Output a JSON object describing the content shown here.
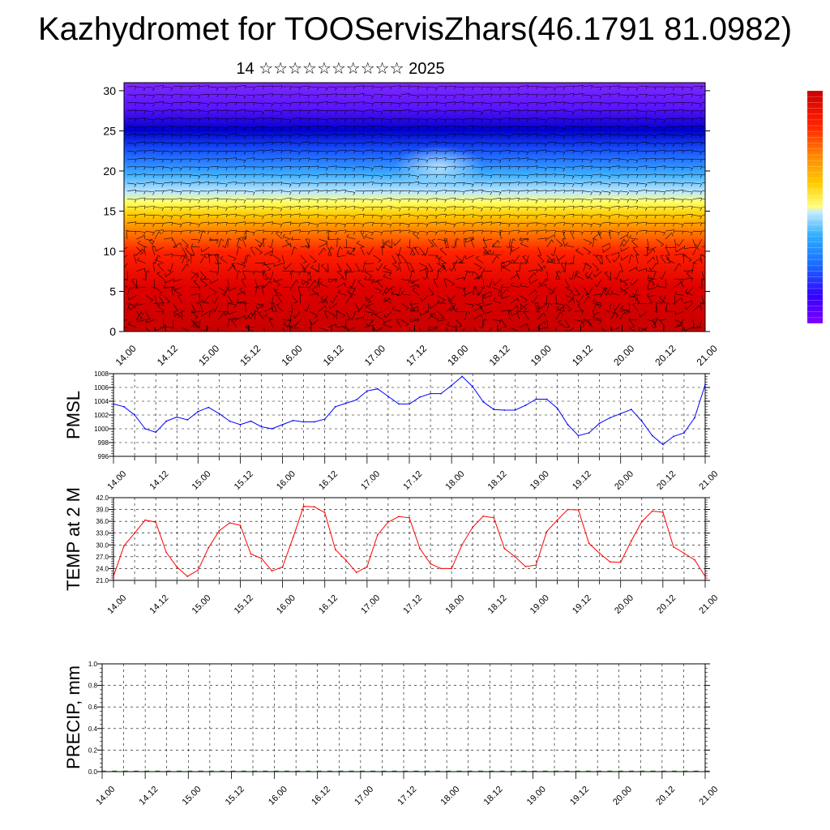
{
  "title": "Kazhydromet for TOOServisZhars(46.1791 81.0982)",
  "subtitle": "14 ☆☆☆☆☆☆☆☆☆☆ 2025",
  "x_labels": [
    "14.00",
    "14.12",
    "15.00",
    "15.12",
    "16.00",
    "16.12",
    "17.00",
    "17.12",
    "18.00",
    "18.12",
    "19.00",
    "19.12",
    "20.00",
    "20.12",
    "21.00"
  ],
  "chart_data": [
    {
      "type": "heatmap",
      "name": "profile",
      "x": [
        "14.00",
        "14.12",
        "15.00",
        "15.12",
        "16.00",
        "16.12",
        "17.00",
        "17.12",
        "18.00",
        "18.12",
        "19.00",
        "19.12",
        "20.00",
        "20.12",
        "21.00"
      ],
      "ylim": [
        0,
        31
      ],
      "yticks": [
        0,
        5,
        10,
        15,
        20,
        25,
        30
      ],
      "colorbar": [
        "#7f00ff",
        "#3300ff",
        "#0000dd",
        "#1a6aff",
        "#2fb0ff",
        "#a6e2ff",
        "#ffff66",
        "#ffcc00",
        "#ff9900",
        "#ff5500",
        "#ff0000",
        "#cc0000"
      ],
      "overlay": "wind barbs"
    },
    {
      "type": "line",
      "ylabel": "PMSL",
      "ylim": [
        996,
        1008
      ],
      "yticks": [
        996,
        998,
        1000,
        1002,
        1004,
        1006,
        1008
      ],
      "ytick_labels": [
        "996",
        "998",
        "1000",
        "1002",
        "1004",
        "1006",
        "1008"
      ],
      "color": "#0000ff",
      "x": [
        0,
        3,
        6,
        9,
        12,
        15,
        18,
        21,
        24,
        27,
        30,
        33,
        36,
        39,
        42,
        45,
        48,
        51,
        54,
        57,
        60,
        63,
        66,
        69,
        72,
        75,
        78,
        81,
        84,
        87,
        90,
        93,
        96,
        99,
        102,
        105,
        108,
        111,
        114,
        117,
        120,
        123,
        126,
        129,
        132,
        135,
        138,
        141,
        144,
        147,
        150,
        153,
        156,
        159,
        162,
        165,
        168
      ],
      "x_ticks": [
        0,
        12,
        24,
        36,
        48,
        60,
        72,
        84,
        96,
        108,
        120,
        132,
        144,
        156,
        168
      ],
      "values": [
        1003.6,
        1003.2,
        1002.0,
        1000.0,
        999.5,
        1001.1,
        1001.7,
        1001.3,
        1002.5,
        1003.1,
        1002.2,
        1001.1,
        1000.6,
        1001.1,
        1000.3,
        1000.0,
        1000.6,
        1001.2,
        1001.0,
        1001.0,
        1001.4,
        1003.2,
        1003.7,
        1004.2,
        1005.5,
        1005.8,
        1004.7,
        1003.6,
        1003.6,
        1004.6,
        1005.1,
        1005.1,
        1006.3,
        1007.6,
        1006.1,
        1003.9,
        1002.8,
        1002.7,
        1002.7,
        1003.4,
        1004.3,
        1004.3,
        1003.0,
        1000.6,
        999.0,
        999.4,
        1000.8,
        1001.6,
        1002.2,
        1002.8,
        1001.1,
        999.0,
        997.7,
        998.9,
        999.4,
        1001.6,
        1006.4
      ]
    },
    {
      "type": "line",
      "ylabel": "TEMP at 2 M",
      "ylim": [
        21,
        42
      ],
      "yticks": [
        21,
        24,
        27,
        30,
        33,
        36,
        39,
        42
      ],
      "ytick_labels": [
        "21.0",
        "24.0",
        "27.0",
        "30.0",
        "33.0",
        "36.0",
        "39.0",
        "42.0"
      ],
      "color": "#ff0000",
      "x": [
        0,
        3,
        6,
        9,
        12,
        15,
        18,
        21,
        24,
        27,
        30,
        33,
        36,
        39,
        42,
        45,
        48,
        51,
        54,
        57,
        60,
        63,
        66,
        69,
        72,
        75,
        78,
        81,
        84,
        87,
        90,
        93,
        96,
        99,
        102,
        105,
        108,
        111,
        114,
        117,
        120,
        123,
        126,
        129,
        132,
        135,
        138,
        141,
        144,
        147,
        150,
        153,
        156,
        159,
        162,
        165,
        168
      ],
      "x_ticks": [
        0,
        12,
        24,
        36,
        48,
        60,
        72,
        84,
        96,
        108,
        120,
        132,
        144,
        156,
        168
      ],
      "values": [
        22.0,
        29.8,
        33.0,
        36.3,
        35.8,
        28.1,
        24.4,
        22.0,
        23.6,
        29.3,
        33.6,
        35.6,
        35.0,
        27.7,
        26.6,
        23.4,
        24.4,
        31.9,
        39.8,
        39.7,
        38.2,
        28.8,
        26.1,
        23.0,
        24.5,
        32.6,
        35.8,
        37.2,
        36.9,
        29.1,
        25.2,
        24.0,
        24.0,
        30.1,
        34.5,
        37.3,
        36.9,
        29.1,
        27.0,
        24.5,
        24.9,
        33.4,
        36.3,
        39.0,
        38.9,
        30.4,
        27.9,
        25.7,
        25.6,
        31.0,
        35.9,
        38.6,
        38.3,
        29.5,
        27.9,
        26.2,
        22.0
      ]
    },
    {
      "type": "bar",
      "ylabel": "PRECIP, mm",
      "ylim": [
        0,
        1
      ],
      "yticks": [
        0,
        0.2,
        0.4,
        0.6,
        0.8,
        1.0
      ],
      "ytick_labels": [
        "0.0",
        "0.2",
        "0.4",
        "0.6",
        "0.8",
        "1.0"
      ],
      "color": "#005000",
      "x_ticks": [
        0,
        12,
        24,
        36,
        48,
        60,
        72,
        84,
        96,
        108,
        120,
        132,
        144,
        156,
        168
      ],
      "values": [
        0,
        0,
        0,
        0,
        0,
        0,
        0,
        0,
        0,
        0,
        0,
        0,
        0,
        0,
        0,
        0,
        0,
        0,
        0,
        0,
        0,
        0,
        0,
        0,
        0,
        0,
        0,
        0,
        0,
        0,
        0,
        0,
        0,
        0,
        0,
        0,
        0,
        0,
        0,
        0,
        0,
        0,
        0,
        0,
        0,
        0,
        0,
        0,
        0,
        0,
        0,
        0,
        0,
        0,
        0,
        0,
        0
      ]
    }
  ]
}
